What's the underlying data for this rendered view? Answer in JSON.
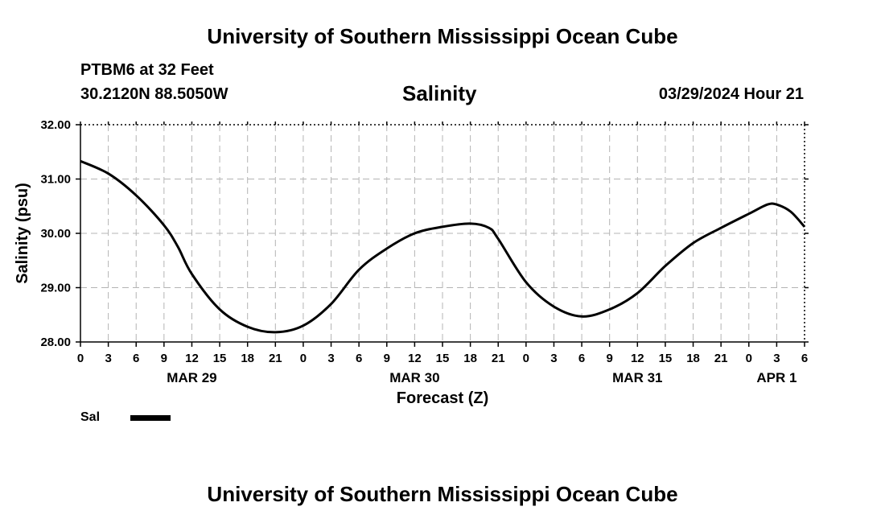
{
  "header": {
    "title": "University of Southern Mississippi Ocean Cube",
    "station": "PTBM6 at 32 Feet",
    "coordinates": "30.2120N  88.5050W",
    "timestamp": "03/29/2024 Hour 21"
  },
  "footer": {
    "title": "University of Southern Mississippi Ocean Cube"
  },
  "legend": {
    "label": "Sal"
  },
  "chart_data": {
    "type": "line",
    "title": "Salinity",
    "xlabel": "Forecast (Z)",
    "ylabel": "Salinity (psu)",
    "ylim": [
      28.0,
      32.0
    ],
    "yticks": [
      "28.00",
      "29.00",
      "30.00",
      "31.00",
      "32.00"
    ],
    "xlim": [
      0,
      78
    ],
    "xtick_labels": [
      "0",
      "3",
      "6",
      "9",
      "12",
      "15",
      "18",
      "21",
      "0",
      "3",
      "6",
      "9",
      "12",
      "15",
      "18",
      "21",
      "0",
      "3",
      "6",
      "9",
      "12",
      "15",
      "18",
      "21",
      "0",
      "3",
      "6"
    ],
    "date_labels": [
      {
        "label": "MAR 29",
        "hour": 12
      },
      {
        "label": "MAR 30",
        "hour": 36
      },
      {
        "label": "MAR 31",
        "hour": 60
      },
      {
        "label": "APR 1",
        "hour": 75
      }
    ],
    "grid": true,
    "series": [
      {
        "name": "Sal",
        "x": [
          0,
          3,
          6,
          9,
          10.5,
          12,
          15,
          18,
          21,
          24,
          27,
          30,
          33,
          36,
          39,
          42,
          44,
          45,
          48,
          51,
          54,
          57,
          60,
          63,
          66,
          69,
          72,
          74,
          75,
          76.5,
          78
        ],
        "y": [
          31.33,
          31.1,
          30.7,
          30.15,
          29.75,
          29.25,
          28.6,
          28.28,
          28.18,
          28.3,
          28.7,
          29.33,
          29.72,
          30.0,
          30.12,
          30.18,
          30.1,
          29.9,
          29.1,
          28.65,
          28.47,
          28.6,
          28.9,
          29.4,
          29.82,
          30.1,
          30.36,
          30.53,
          30.53,
          30.4,
          30.12
        ]
      }
    ]
  }
}
